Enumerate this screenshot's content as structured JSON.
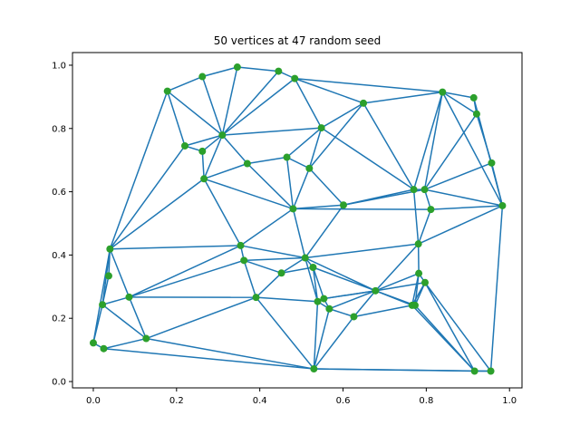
{
  "chart_data": {
    "type": "scatter",
    "title": "50 vertices at 47 random seed",
    "xlabel": "",
    "ylabel": "",
    "xlim": [
      -0.05,
      1.03
    ],
    "ylim": [
      -0.02,
      1.04
    ],
    "grid": false,
    "x_ticks": [
      "0.0",
      "0.2",
      "0.4",
      "0.6",
      "0.8",
      "1.0"
    ],
    "y_ticks": [
      "0.0",
      "0.2",
      "0.4",
      "0.6",
      "0.8",
      "1.0"
    ],
    "colors": {
      "edges": "#1f77b4",
      "vertices": "#2ca02c"
    },
    "points": [
      [
        0.0,
        0.122
      ],
      [
        0.025,
        0.104
      ],
      [
        0.022,
        0.243
      ],
      [
        0.037,
        0.334
      ],
      [
        0.04,
        0.419
      ],
      [
        0.086,
        0.267
      ],
      [
        0.127,
        0.136
      ],
      [
        0.178,
        0.918
      ],
      [
        0.22,
        0.745
      ],
      [
        0.262,
        0.964
      ],
      [
        0.262,
        0.728
      ],
      [
        0.266,
        0.641
      ],
      [
        0.346,
        0.994
      ],
      [
        0.31,
        0.779
      ],
      [
        0.37,
        0.689
      ],
      [
        0.354,
        0.43
      ],
      [
        0.362,
        0.383
      ],
      [
        0.391,
        0.266
      ],
      [
        0.445,
        0.981
      ],
      [
        0.484,
        0.958
      ],
      [
        0.465,
        0.709
      ],
      [
        0.48,
        0.546
      ],
      [
        0.452,
        0.343
      ],
      [
        0.509,
        0.391
      ],
      [
        0.519,
        0.674
      ],
      [
        0.528,
        0.361
      ],
      [
        0.548,
        0.802
      ],
      [
        0.539,
        0.253
      ],
      [
        0.554,
        0.262
      ],
      [
        0.53,
        0.04
      ],
      [
        0.567,
        0.23
      ],
      [
        0.601,
        0.558
      ],
      [
        0.626,
        0.205
      ],
      [
        0.649,
        0.88
      ],
      [
        0.678,
        0.287
      ],
      [
        0.766,
        0.241
      ],
      [
        0.77,
        0.607
      ],
      [
        0.773,
        0.241
      ],
      [
        0.781,
        0.435
      ],
      [
        0.782,
        0.342
      ],
      [
        0.796,
        0.607
      ],
      [
        0.797,
        0.313
      ],
      [
        0.811,
        0.544
      ],
      [
        0.839,
        0.915
      ],
      [
        0.914,
        0.897
      ],
      [
        0.921,
        0.846
      ],
      [
        0.916,
        0.033
      ],
      [
        0.955,
        0.033
      ],
      [
        0.957,
        0.691
      ],
      [
        0.983,
        0.556
      ]
    ],
    "edges": [
      [
        0,
        1
      ],
      [
        0,
        2
      ],
      [
        0,
        4
      ],
      [
        1,
        6
      ],
      [
        1,
        29
      ],
      [
        2,
        3
      ],
      [
        2,
        5
      ],
      [
        3,
        4
      ],
      [
        4,
        5
      ],
      [
        2,
        4
      ],
      [
        4,
        7
      ],
      [
        4,
        8
      ],
      [
        4,
        11
      ],
      [
        4,
        15
      ],
      [
        5,
        6
      ],
      [
        5,
        15
      ],
      [
        5,
        17
      ],
      [
        5,
        16
      ],
      [
        6,
        17
      ],
      [
        6,
        29
      ],
      [
        6,
        2
      ],
      [
        7,
        9
      ],
      [
        7,
        13
      ],
      [
        7,
        8
      ],
      [
        8,
        13
      ],
      [
        8,
        10
      ],
      [
        9,
        12
      ],
      [
        9,
        13
      ],
      [
        10,
        13
      ],
      [
        10,
        11
      ],
      [
        11,
        13
      ],
      [
        11,
        14
      ],
      [
        11,
        21
      ],
      [
        11,
        15
      ],
      [
        12,
        13
      ],
      [
        12,
        18
      ],
      [
        13,
        18
      ],
      [
        13,
        19
      ],
      [
        13,
        14
      ],
      [
        14,
        20
      ],
      [
        13,
        26
      ],
      [
        18,
        19
      ],
      [
        19,
        43
      ],
      [
        19,
        33
      ],
      [
        19,
        26
      ],
      [
        26,
        33
      ],
      [
        26,
        20
      ],
      [
        26,
        24
      ],
      [
        26,
        36
      ],
      [
        33,
        43
      ],
      [
        33,
        36
      ],
      [
        36,
        43
      ],
      [
        36,
        40
      ],
      [
        40,
        43
      ],
      [
        40,
        42
      ],
      [
        40,
        49
      ],
      [
        43,
        44
      ],
      [
        43,
        45
      ],
      [
        44,
        45
      ],
      [
        45,
        48
      ],
      [
        43,
        49
      ],
      [
        44,
        49
      ],
      [
        48,
        49
      ],
      [
        48,
        40
      ],
      [
        45,
        40
      ],
      [
        42,
        49
      ],
      [
        42,
        38
      ],
      [
        38,
        49
      ],
      [
        49,
        47
      ],
      [
        47,
        46
      ],
      [
        47,
        41
      ],
      [
        46,
        41
      ],
      [
        46,
        37
      ],
      [
        46,
        29
      ],
      [
        47,
        29
      ],
      [
        24,
        21
      ],
      [
        24,
        31
      ],
      [
        20,
        21
      ],
      [
        20,
        24
      ],
      [
        14,
        21
      ],
      [
        21,
        31
      ],
      [
        31,
        36
      ],
      [
        31,
        40
      ],
      [
        31,
        23
      ],
      [
        21,
        23
      ],
      [
        21,
        15
      ],
      [
        15,
        23
      ],
      [
        15,
        16
      ],
      [
        16,
        23
      ],
      [
        16,
        22
      ],
      [
        16,
        17
      ],
      [
        22,
        23
      ],
      [
        22,
        17
      ],
      [
        22,
        25
      ],
      [
        23,
        25
      ],
      [
        23,
        34
      ],
      [
        23,
        38
      ],
      [
        36,
        38
      ],
      [
        38,
        34
      ],
      [
        38,
        39
      ],
      [
        39,
        34
      ],
      [
        39,
        41
      ],
      [
        39,
        37
      ],
      [
        39,
        35
      ],
      [
        34,
        41
      ],
      [
        34,
        35
      ],
      [
        34,
        32
      ],
      [
        34,
        28
      ],
      [
        34,
        30
      ],
      [
        34,
        37
      ],
      [
        28,
        30
      ],
      [
        28,
        25
      ],
      [
        25,
        27
      ],
      [
        27,
        28
      ],
      [
        27,
        17
      ],
      [
        27,
        29
      ],
      [
        27,
        30
      ],
      [
        28,
        34
      ],
      [
        30,
        29
      ],
      [
        30,
        32
      ],
      [
        32,
        35
      ],
      [
        32,
        29
      ],
      [
        35,
        41
      ],
      [
        37,
        41
      ],
      [
        35,
        46
      ],
      [
        29,
        17
      ],
      [
        25,
        34
      ],
      [
        23,
        27
      ],
      [
        33,
        24
      ],
      [
        21,
        42
      ]
    ]
  }
}
